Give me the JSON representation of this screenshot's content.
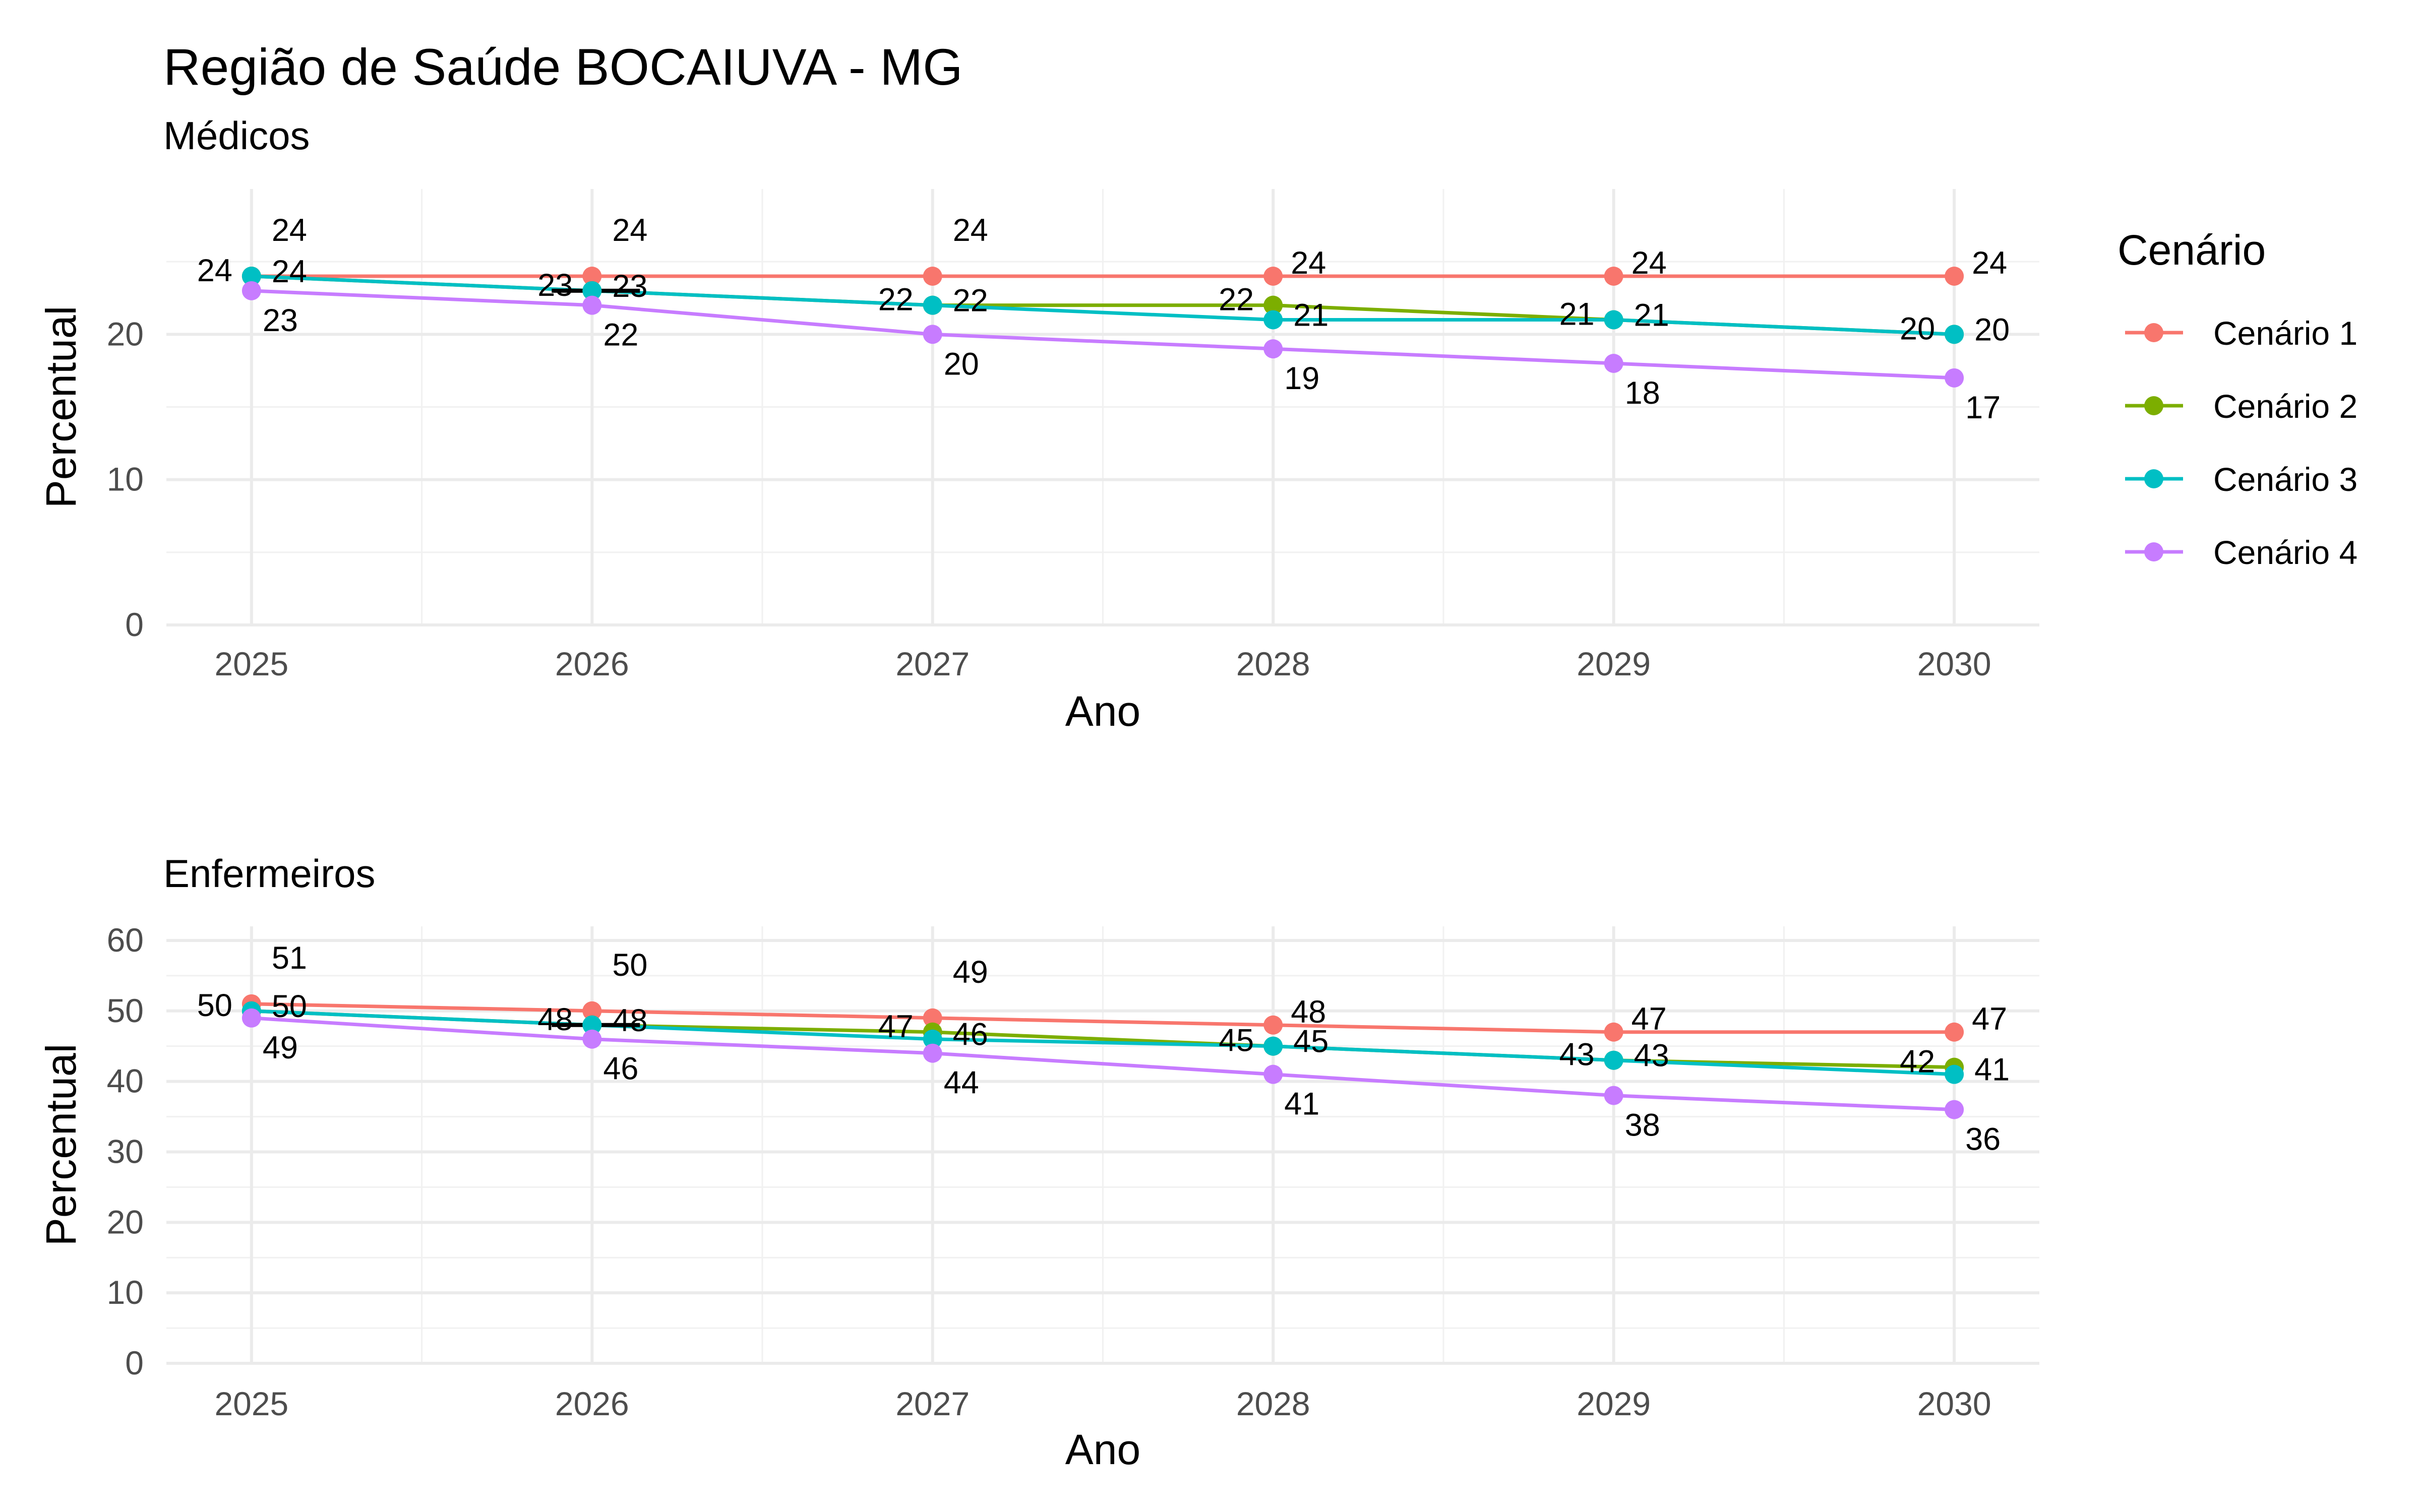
{
  "chart_data": {
    "type": "line",
    "title": "Região de Saúde BOCAIUVA - MG",
    "legend": {
      "title": "Cenário",
      "placement": "right"
    },
    "series_colors": {
      "Cenário 1": "#F8766D",
      "Cenário 2": "#7CAE00",
      "Cenário 3": "#00BFC4",
      "Cenário 4": "#C77CFF"
    },
    "panels": [
      {
        "subtitle": "Médicos",
        "xlabel": "Ano",
        "ylabel": "Percentual",
        "x": [
          2025,
          2026,
          2027,
          2028,
          2029,
          2030
        ],
        "ylim": [
          0,
          30
        ],
        "yticks": [
          0,
          10,
          20
        ],
        "grid": true,
        "series": [
          {
            "name": "Cenário 1",
            "values": [
              24,
              24,
              24,
              24,
              24,
              24
            ]
          },
          {
            "name": "Cenário 2",
            "values": [
              24,
              23,
              22,
              22,
              21,
              20
            ]
          },
          {
            "name": "Cenário 3",
            "values": [
              24,
              23,
              22,
              21,
              21,
              20
            ]
          },
          {
            "name": "Cenário 4",
            "values": [
              23,
              22,
              20,
              19,
              18,
              17
            ]
          }
        ]
      },
      {
        "subtitle": "Enfermeiros",
        "xlabel": "Ano",
        "ylabel": "Percentual",
        "x": [
          2025,
          2026,
          2027,
          2028,
          2029,
          2030
        ],
        "ylim": [
          0,
          62
        ],
        "yticks": [
          0,
          10,
          20,
          30,
          40,
          50,
          60
        ],
        "grid": true,
        "series": [
          {
            "name": "Cenário 1",
            "values": [
              51,
              50,
              49,
              48,
              47,
              47
            ]
          },
          {
            "name": "Cenário 2",
            "values": [
              50,
              48,
              47,
              45,
              43,
              42
            ]
          },
          {
            "name": "Cenário 3",
            "values": [
              50,
              48,
              46,
              45,
              43,
              41
            ]
          },
          {
            "name": "Cenário 4",
            "values": [
              49,
              46,
              44,
              41,
              38,
              36
            ]
          }
        ]
      }
    ]
  }
}
